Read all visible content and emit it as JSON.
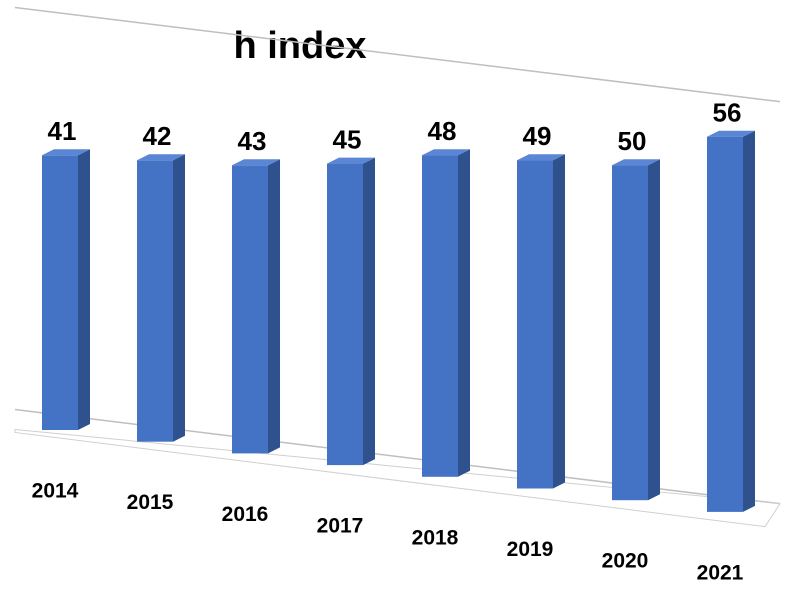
{
  "chart_data": {
    "type": "bar3d",
    "title": "h index",
    "categories": [
      "2014",
      "2015",
      "2016",
      "2017",
      "2018",
      "2019",
      "2020",
      "2021"
    ],
    "values": [
      41,
      42,
      43,
      45,
      48,
      49,
      50,
      56
    ],
    "color": "#4472c4",
    "ylim": [
      0,
      60
    ]
  }
}
